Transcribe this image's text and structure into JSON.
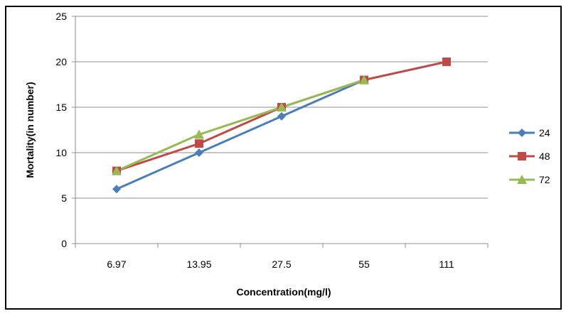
{
  "chart_data": {
    "type": "line",
    "title": "",
    "xlabel": "Concentration(mg/l)",
    "ylabel": "Mortality(in number)",
    "categories": [
      "6.97",
      "13.95",
      "27.5",
      "55",
      "111"
    ],
    "ylim": [
      0,
      25
    ],
    "yticks": [
      "0",
      "5",
      "10",
      "15",
      "20",
      "25"
    ],
    "grid": true,
    "legend_position": "right",
    "series": [
      {
        "name": "24",
        "values": [
          6,
          10,
          14,
          18,
          null
        ],
        "color": "#4a7ebb",
        "marker": "diamond"
      },
      {
        "name": "48",
        "values": [
          8,
          11,
          15,
          18,
          20
        ],
        "color": "#be4b48",
        "marker": "square"
      },
      {
        "name": "72",
        "values": [
          8,
          12,
          15,
          18,
          null
        ],
        "color": "#98b954",
        "marker": "triangle"
      }
    ]
  }
}
